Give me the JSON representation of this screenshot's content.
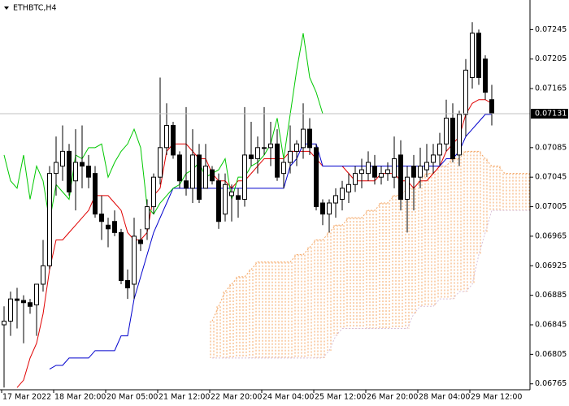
{
  "chart_data": {
    "type": "candlestick",
    "title": "ETHBTC,H4",
    "categories": [
      "17 Mar 2022",
      null,
      null,
      null,
      null,
      null,
      null,
      null,
      "18 Mar 20:00",
      null,
      null,
      null,
      null,
      null,
      null,
      null,
      "20 Mar 05:00",
      null,
      null,
      null,
      null,
      null,
      null,
      null,
      "21 Mar 12:00",
      null,
      null,
      null,
      null,
      null,
      null,
      null,
      "22 Mar 20:00",
      null,
      null,
      null,
      null,
      null,
      null,
      null,
      "24 Mar 04:00",
      null,
      null,
      null,
      null,
      null,
      null,
      null,
      "25 Mar 12:00",
      null,
      null,
      null,
      null,
      null,
      null,
      null,
      "26 Mar 20:00",
      null,
      null,
      null,
      null,
      null,
      null,
      null,
      "28 Mar 04:00",
      null,
      null,
      null,
      null,
      null,
      null,
      null,
      "29 Mar 12:00",
      null,
      null,
      null,
      null,
      null,
      null,
      null,
      null,
      null
    ],
    "open": [
      0.06845,
      0.0685,
      0.0688,
      0.06878,
      0.06875,
      0.06872,
      0.069,
      0.06925,
      0.0705,
      0.0706,
      0.0708,
      0.0704,
      0.07065,
      0.0706,
      0.0705,
      0.06995,
      0.0698,
      0.06985,
      0.0697,
      0.06905,
      0.069,
      0.0696,
      0.06975,
      0.07005,
      0.07045,
      0.07085,
      0.07115,
      0.07075,
      0.0704,
      0.0703,
      0.07075,
      0.0703,
      0.07055,
      0.0704,
      0.06995,
      0.0702,
      0.0702,
      0.07015,
      0.07075,
      0.0707,
      0.07085,
      0.07085,
      0.0709,
      0.0705,
      0.07065,
      0.0708,
      0.07085,
      0.0711,
      0.07085,
      0.0701,
      0.06995,
      0.0701,
      0.07015,
      0.07025,
      0.07035,
      0.0705,
      0.0705,
      0.0706,
      0.07045,
      0.0705,
      0.07045,
      0.07075,
      0.07015,
      0.0706,
      0.07045,
      0.07055,
      0.07065,
      0.07075,
      0.0709,
      0.07125,
      0.07075,
      0.0713,
      0.0718,
      0.0724,
      0.07205,
      0.0715,
      null,
      null,
      null,
      null,
      null,
      null
    ],
    "high": [
      0.0687,
      0.0689,
      0.06895,
      0.06885,
      0.0688,
      0.069,
      0.0696,
      0.0706,
      0.071,
      0.07115,
      0.0709,
      0.0711,
      0.07115,
      0.07075,
      0.0706,
      0.0702,
      0.0699,
      0.07,
      0.06975,
      0.0692,
      0.0699,
      0.06975,
      0.07015,
      0.0705,
      0.0718,
      0.07145,
      0.0712,
      0.0708,
      0.0714,
      0.0711,
      0.0709,
      0.0709,
      0.0706,
      0.0705,
      0.0705,
      0.07035,
      0.0703,
      0.0714,
      0.0712,
      0.071,
      0.0714,
      0.0712,
      0.0711,
      0.0707,
      0.07115,
      0.07095,
      0.07145,
      0.07125,
      0.0709,
      0.07015,
      0.07015,
      0.0703,
      0.0704,
      0.0705,
      0.0706,
      0.0707,
      0.0708,
      0.07075,
      0.0706,
      0.07065,
      0.071,
      0.07095,
      0.0706,
      0.07075,
      0.07085,
      0.0709,
      0.0709,
      0.07105,
      0.0715,
      0.07145,
      0.07135,
      0.07205,
      0.07255,
      0.07245,
      0.0721,
      0.0717,
      null,
      null,
      null,
      null,
      null,
      null
    ],
    "low": [
      0.0676,
      0.0683,
      0.0684,
      0.0682,
      0.0686,
      0.0683,
      0.0689,
      0.0692,
      0.0702,
      0.0704,
      0.0702,
      0.07,
      0.0703,
      0.0703,
      0.0699,
      0.0696,
      0.0695,
      0.06965,
      0.069,
      0.0688,
      0.0688,
      0.06945,
      0.0696,
      0.06995,
      0.07035,
      0.07075,
      0.0707,
      0.0703,
      0.0702,
      0.0701,
      0.0701,
      0.0703,
      0.07035,
      0.06975,
      0.06985,
      0.06985,
      0.0699,
      0.07005,
      0.0706,
      0.0705,
      0.07075,
      0.0706,
      0.0704,
      0.0703,
      0.0705,
      0.0706,
      0.0707,
      0.07075,
      0.07,
      0.0698,
      0.0697,
      0.0699,
      0.07,
      0.0701,
      0.07025,
      0.0703,
      0.0704,
      0.07035,
      0.07035,
      0.0704,
      0.0703,
      0.07,
      0.0697,
      0.07,
      0.0703,
      0.07045,
      0.0705,
      0.0706,
      0.0708,
      0.07065,
      0.0706,
      0.071,
      0.07165,
      0.0717,
      0.0715,
      0.07115,
      null,
      null,
      null,
      null,
      null,
      null
    ],
    "close": [
      0.0685,
      0.0688,
      0.06878,
      0.06875,
      0.0687,
      0.069,
      0.06925,
      0.0705,
      0.07065,
      0.0708,
      0.07025,
      0.07065,
      0.0706,
      0.07045,
      0.06995,
      0.06985,
      0.06975,
      0.0697,
      0.06905,
      0.06895,
      0.06965,
      0.06955,
      0.07005,
      0.07045,
      0.07085,
      0.07115,
      0.07075,
      0.0704,
      0.0703,
      0.07075,
      0.07015,
      0.0706,
      0.0704,
      0.06985,
      0.07035,
      0.07025,
      0.07015,
      0.07075,
      0.0707,
      0.07085,
      0.07085,
      0.0709,
      0.07045,
      0.07065,
      0.0708,
      0.0709,
      0.0711,
      0.07085,
      0.07005,
      0.06995,
      0.0701,
      0.0702,
      0.0703,
      0.07035,
      0.0705,
      0.07055,
      0.07065,
      0.07045,
      0.0705,
      0.07055,
      0.0707,
      0.07015,
      0.07045,
      0.07045,
      0.0706,
      0.07065,
      0.07075,
      0.0709,
      0.07125,
      0.0707,
      0.0713,
      0.0719,
      0.0724,
      0.0718,
      0.0716,
      0.07131,
      null,
      null,
      null,
      null,
      null,
      null
    ],
    "cloud": {
      "span_a": {
        "color": "#f4a460",
        "values": [
          null,
          null,
          null,
          null,
          null,
          null,
          null,
          null,
          null,
          null,
          null,
          null,
          null,
          null,
          null,
          null,
          null,
          null,
          null,
          null,
          null,
          null,
          null,
          null,
          null,
          null,
          null,
          null,
          null,
          null,
          null,
          null,
          0.0685,
          0.0687,
          0.0689,
          0.069,
          0.0691,
          0.0691,
          0.0692,
          0.0693,
          0.0693,
          0.0693,
          0.0693,
          0.0693,
          0.0693,
          0.0694,
          0.0694,
          0.0695,
          0.0696,
          0.0696,
          0.0697,
          0.0698,
          0.0698,
          0.0699,
          0.0699,
          0.0699,
          0.07,
          0.07,
          0.0701,
          0.0701,
          0.0702,
          0.0702,
          0.0703,
          0.0703,
          0.0704,
          0.0705,
          0.0705,
          0.0706,
          0.0706,
          0.0707,
          0.0707,
          0.0708,
          0.0708,
          0.0708,
          0.0707,
          0.0706,
          0.0706,
          0.0705,
          0.0705,
          0.0705,
          0.0705,
          0.0705
        ]
      },
      "span_b": {
        "color": "#d8bfd8",
        "values": [
          null,
          null,
          null,
          null,
          null,
          null,
          null,
          null,
          null,
          null,
          null,
          null,
          null,
          null,
          null,
          null,
          null,
          null,
          null,
          null,
          null,
          null,
          null,
          null,
          null,
          null,
          null,
          null,
          null,
          null,
          null,
          null,
          0.068,
          0.068,
          0.068,
          0.068,
          0.068,
          0.068,
          0.068,
          0.068,
          0.068,
          0.068,
          0.068,
          0.068,
          0.068,
          0.068,
          0.068,
          0.068,
          0.068,
          0.068,
          0.0681,
          0.0683,
          0.0684,
          0.0684,
          0.0684,
          0.0684,
          0.0684,
          0.0684,
          0.0684,
          0.0684,
          0.0684,
          0.0684,
          0.0684,
          0.0686,
          0.0687,
          0.0687,
          0.0687,
          0.0688,
          0.0688,
          0.0688,
          0.0689,
          0.0689,
          0.069,
          0.0694,
          0.0697,
          0.07,
          0.07,
          0.07,
          0.07,
          0.07,
          0.07,
          0.07
        ]
      }
    },
    "lines": [
      {
        "color": "#e00000",
        "values": [
          null,
          null,
          0.0676,
          0.0677,
          0.068,
          0.0682,
          0.0686,
          0.0692,
          0.0696,
          0.0696,
          0.0697,
          0.0698,
          0.0699,
          0.07,
          0.0702,
          0.0702,
          0.0702,
          0.0701,
          0.07,
          0.0697,
          0.0696,
          0.0696,
          0.0697,
          0.0702,
          0.0703,
          0.0708,
          0.0709,
          0.0709,
          0.0709,
          0.0708,
          0.0707,
          0.0707,
          0.0705,
          0.0704,
          0.0704,
          0.0703,
          0.0704,
          0.0704,
          0.0705,
          0.0706,
          0.0707,
          0.0707,
          0.0707,
          0.0707,
          0.0708,
          0.0708,
          0.0708,
          0.0708,
          0.0707,
          0.0706,
          0.0706,
          0.0706,
          0.0706,
          0.0705,
          0.0704,
          0.0704,
          0.0704,
          0.0704,
          0.0705,
          0.0705,
          0.0705,
          0.0704,
          0.0704,
          0.0703,
          0.0704,
          0.0704,
          0.0705,
          0.0706,
          0.0708,
          0.0709,
          0.071,
          0.0713,
          0.07145,
          0.0715,
          0.0715,
          0.07145,
          null,
          null,
          null,
          null,
          null,
          null
        ]
      },
      {
        "color": "#0000cd",
        "values": [
          null,
          null,
          null,
          null,
          null,
          null,
          null,
          0.06785,
          0.0679,
          0.0679,
          0.068,
          0.068,
          0.068,
          0.068,
          0.0681,
          0.0681,
          0.0681,
          0.0681,
          0.0683,
          0.0683,
          0.0688,
          0.0691,
          0.0694,
          0.0697,
          0.0699,
          0.0701,
          0.0703,
          0.0703,
          0.0703,
          0.0703,
          0.0703,
          0.0703,
          0.0703,
          0.0703,
          0.0703,
          0.0703,
          0.0703,
          0.0703,
          0.0703,
          0.0703,
          0.0703,
          0.0703,
          0.0703,
          0.0703,
          0.0706,
          0.0707,
          0.0709,
          0.0709,
          0.0709,
          0.0706,
          0.0706,
          0.0706,
          0.0706,
          0.0706,
          0.0706,
          0.0706,
          0.0706,
          0.0706,
          0.0706,
          0.0706,
          0.0706,
          0.0706,
          0.0706,
          0.0706,
          0.0706,
          0.0706,
          0.0706,
          0.0706,
          0.0707,
          0.0707,
          0.0708,
          0.071,
          0.0711,
          0.0712,
          0.0713,
          0.0713,
          null,
          null,
          null,
          null,
          null,
          null
        ]
      },
      {
        "color": "#00c800",
        "values": [
          0.07075,
          0.0704,
          0.0703,
          0.07075,
          0.07015,
          0.0706,
          0.0704,
          0.06985,
          0.07035,
          0.07025,
          0.07015,
          0.07075,
          0.0707,
          0.07085,
          0.07085,
          0.0709,
          0.07045,
          0.07065,
          0.0708,
          0.0709,
          0.0711,
          0.07085,
          0.07005,
          0.06995,
          0.0701,
          0.0702,
          0.0703,
          0.07035,
          0.0705,
          0.07055,
          0.07065,
          0.07045,
          0.0705,
          0.07055,
          0.0707,
          0.07015,
          0.07045,
          0.07045,
          0.0706,
          0.07065,
          0.07075,
          0.0709,
          0.07125,
          0.0707,
          0.0713,
          0.0719,
          0.0724,
          0.0718,
          0.0716,
          0.07131,
          null,
          null,
          null,
          null,
          null,
          null,
          null,
          null,
          null,
          null,
          null,
          null,
          null,
          null,
          null,
          null,
          null,
          null,
          null,
          null,
          null,
          null,
          null,
          null,
          null,
          null,
          null,
          null,
          null,
          null,
          null,
          null
        ]
      }
    ],
    "current_price": 0.07131,
    "ylim": [
      0.06757,
      0.07285
    ],
    "yticks": [
      0.07245,
      0.07205,
      0.07165,
      0.07085,
      0.07045,
      0.07005,
      0.06965,
      0.06925,
      0.06885,
      0.06845,
      0.06805,
      0.06765
    ]
  }
}
